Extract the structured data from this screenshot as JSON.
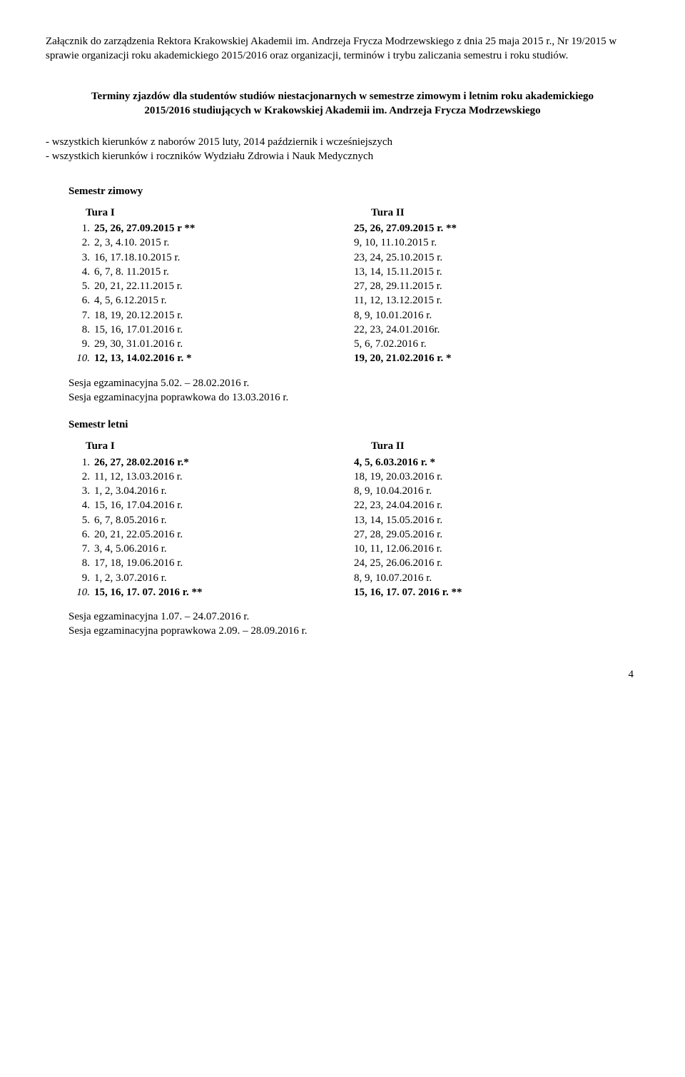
{
  "header": {
    "line1": "Załącznik do zarządzenia Rektora Krakowskiej Akademii  im. Andrzeja Frycza Modrzewskiego z dnia  25 maja 2015 r., Nr 19/2015 w sprawie organizacji roku akademickiego 2015/2016 oraz organizacji, terminów i trybu zaliczania semestru i roku studiów."
  },
  "title": "Terminy zjazdów dla studentów studiów niestacjonarnych w semestrze zimowym i letnim roku akademickiego 2015/2016 studiujących w Krakowskiej Akademii im. Andrzeja Frycza Modrzewskiego",
  "notes": [
    "- wszystkich kierunków z naborów  2015 luty, 2014 październik i wcześniejszych",
    "- wszystkich kierunków i roczników Wydziału Zdrowia i Nauk Medycznych"
  ],
  "winter": {
    "heading": "Semestr zimowy",
    "colI": "Tura I",
    "colII": "Tura II",
    "rowsI": [
      {
        "n": "1.",
        "v": "25, 26, 27.09.2015 r **",
        "bold": true
      },
      {
        "n": "2.",
        "v": "2, 3, 4.10. 2015 r."
      },
      {
        "n": "3.",
        "v": "16, 17.18.10.2015 r."
      },
      {
        "n": "4.",
        "v": "6, 7, 8. 11.2015 r."
      },
      {
        "n": "5.",
        "v": "20, 21, 22.11.2015 r."
      },
      {
        "n": "6.",
        "v": "4, 5, 6.12.2015 r."
      },
      {
        "n": "7.",
        "v": "18, 19, 20.12.2015 r."
      },
      {
        "n": "8.",
        "v": "15, 16, 17.01.2016 r."
      },
      {
        "n": "9.",
        "v": "29, 30, 31.01.2016 r."
      },
      {
        "n": "10.",
        "v": "12, 13, 14.02.2016 r.    *",
        "bold": true,
        "italicNum": true
      }
    ],
    "rowsII": [
      {
        "v": "25, 26, 27.09.2015 r. **",
        "bold": true
      },
      {
        "v": "9, 10, 11.10.2015 r."
      },
      {
        "v": "23, 24, 25.10.2015 r."
      },
      {
        "v": "13, 14, 15.11.2015 r."
      },
      {
        "v": "27, 28, 29.11.2015 r."
      },
      {
        "v": "11, 12, 13.12.2015 r."
      },
      {
        "v": "8, 9, 10.01.2016 r."
      },
      {
        "v": "22, 23, 24.01.2016r."
      },
      {
        "v": "5, 6, 7.02.2016 r."
      },
      {
        "v": "19, 20, 21.02.2016 r. *",
        "bold": true
      }
    ],
    "sessions": [
      "Sesja egzaminacyjna 5.02. – 28.02.2016 r.",
      "Sesja egzaminacyjna poprawkowa do 13.03.2016 r."
    ]
  },
  "summer": {
    "heading": "Semestr letni",
    "colI": "Tura I",
    "colII": "Tura II",
    "rowsI": [
      {
        "n": "1.",
        "v": "26, 27, 28.02.2016 r.*",
        "bold": true
      },
      {
        "n": "2.",
        "v": "11, 12, 13.03.2016 r."
      },
      {
        "n": "3.",
        "v": "1, 2, 3.04.2016 r."
      },
      {
        "n": "4.",
        "v": "15, 16, 17.04.2016 r."
      },
      {
        "n": "5.",
        "v": "6, 7, 8.05.2016 r."
      },
      {
        "n": "6.",
        "v": "20, 21, 22.05.2016 r."
      },
      {
        "n": "7.",
        "v": "3, 4, 5.06.2016 r."
      },
      {
        "n": "8.",
        "v": "17, 18, 19.06.2016 r."
      },
      {
        "n": "9.",
        "v": "1, 2, 3.07.2016 r."
      },
      {
        "n": "10.",
        "v": "15, 16, 17. 07. 2016 r. **",
        "bold": true,
        "italicNum": true
      }
    ],
    "rowsII": [
      {
        "v": "4, 5, 6.03.2016 r.  *",
        "bold": true
      },
      {
        "v": "18, 19, 20.03.2016 r."
      },
      {
        "v": "8, 9, 10.04.2016 r."
      },
      {
        "v": "22, 23, 24.04.2016 r."
      },
      {
        "v": "13, 14, 15.05.2016 r."
      },
      {
        "v": "27, 28, 29.05.2016 r."
      },
      {
        "v": "10, 11, 12.06.2016 r."
      },
      {
        "v": "24, 25, 26.06.2016 r."
      },
      {
        "v": "8, 9, 10.07.2016 r."
      },
      {
        "v": "15, 16, 17. 07. 2016 r. **",
        "bold": true
      }
    ],
    "sessions": [
      "Sesja egzaminacyjna  1.07. – 24.07.2016 r.",
      "Sesja egzaminacyjna poprawkowa 2.09. – 28.09.2016 r."
    ]
  },
  "pageNumber": "4"
}
